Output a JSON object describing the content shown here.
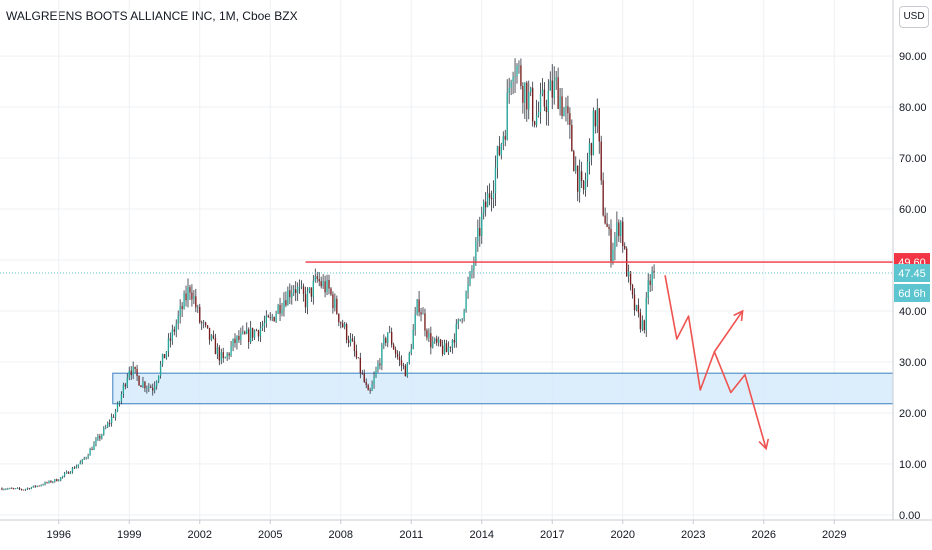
{
  "header": {
    "title": "WALGREENS BOOTS ALLIANCE INC, 1M, Cboe BZX"
  },
  "currency": "USD",
  "price_tags": {
    "resistance": "49.60",
    "last": "47.45",
    "countdown": "6d 6h"
  },
  "colors": {
    "up": "#26a69a",
    "down": "#7a1f1f",
    "wick": "#2a2e39",
    "resistance_line": "#f23645",
    "zone_fill": "#d6ebfb",
    "zone_border": "#3a7fc1",
    "projection": "#ef5350",
    "last_tag": "#5cc5cf",
    "grid": "#eef0f3"
  },
  "chart_data": {
    "type": "candlestick",
    "title": "WALGREENS BOOTS ALLIANCE INC, 1M, Cboe BZX",
    "interval": "1M",
    "xlabel": "",
    "ylabel": "",
    "x_ticks": [
      "1996",
      "1999",
      "2002",
      "2005",
      "2008",
      "2011",
      "2014",
      "2017",
      "2020",
      "2023",
      "2026",
      "2029"
    ],
    "y_ticks": [
      "0.00",
      "10.00",
      "20.00",
      "30.00",
      "40.00",
      "50.00",
      "60.00",
      "70.00",
      "80.00",
      "90.00"
    ],
    "ylim": [
      -1,
      101
    ],
    "xlim": [
      1993.5,
      2031.5
    ],
    "grid": true,
    "price_path": [
      [
        1993.5,
        5.2
      ],
      [
        1994.5,
        5.0
      ],
      [
        1995.0,
        5.6
      ],
      [
        1996.0,
        7.0
      ],
      [
        1997.0,
        10.5
      ],
      [
        1998.0,
        17.0
      ],
      [
        1998.5,
        21.0
      ],
      [
        1999.0,
        29.0
      ],
      [
        1999.5,
        26.0
      ],
      [
        2000.0,
        25.0
      ],
      [
        2000.8,
        35.0
      ],
      [
        2001.6,
        45.0
      ],
      [
        2002.0,
        38.0
      ],
      [
        2002.5,
        34.0
      ],
      [
        2003.0,
        30.0
      ],
      [
        2003.5,
        34.0
      ],
      [
        2004.0,
        35.0
      ],
      [
        2005.0,
        38.0
      ],
      [
        2005.5,
        42.0
      ],
      [
        2006.0,
        45.0
      ],
      [
        2006.5,
        42.0
      ],
      [
        2007.0,
        46.0
      ],
      [
        2007.5,
        44.0
      ],
      [
        2008.0,
        38.0
      ],
      [
        2008.5,
        33.0
      ],
      [
        2009.0,
        26.0
      ],
      [
        2009.2,
        23.0
      ],
      [
        2009.5,
        28.0
      ],
      [
        2010.0,
        36.0
      ],
      [
        2010.5,
        30.0
      ],
      [
        2010.8,
        28.0
      ],
      [
        2011.3,
        42.0
      ],
      [
        2011.8,
        34.0
      ],
      [
        2012.5,
        32.0
      ],
      [
        2013.0,
        37.0
      ],
      [
        2013.5,
        46.0
      ],
      [
        2014.0,
        58.0
      ],
      [
        2014.5,
        66.0
      ],
      [
        2015.0,
        77.0
      ],
      [
        2015.3,
        90.0
      ],
      [
        2015.8,
        84.0
      ],
      [
        2016.3,
        78.0
      ],
      [
        2016.8,
        82.0
      ],
      [
        2017.2,
        84.0
      ],
      [
        2017.6,
        78.0
      ],
      [
        2018.0,
        68.0
      ],
      [
        2018.3,
        62.0
      ],
      [
        2018.6,
        72.0
      ],
      [
        2018.9,
        80.0
      ],
      [
        2019.1,
        62.0
      ],
      [
        2019.5,
        52.0
      ],
      [
        2019.9,
        58.0
      ],
      [
        2020.1,
        50.0
      ],
      [
        2020.4,
        42.0
      ],
      [
        2020.7,
        38.0
      ],
      [
        2020.9,
        37.0
      ],
      [
        2021.1,
        45.0
      ],
      [
        2021.3,
        47.45
      ]
    ],
    "annotations": {
      "resistance_level": 49.6,
      "last_price": 47.45,
      "support_zone": [
        21.8,
        27.8
      ],
      "support_zone_start": 1998.3,
      "resistance_start": 2006.5,
      "projection_path": [
        [
          2021.8,
          47.0
        ],
        [
          2022.3,
          34.5
        ],
        [
          2022.8,
          39.0
        ],
        [
          2023.3,
          24.5
        ],
        [
          2023.9,
          32.0
        ],
        [
          2024.6,
          24.0
        ],
        [
          2025.2,
          27.5
        ],
        [
          2026.1,
          13.0
        ]
      ],
      "projection_branch": [
        [
          2023.9,
          32.0
        ],
        [
          2025.1,
          40.0
        ]
      ]
    }
  }
}
